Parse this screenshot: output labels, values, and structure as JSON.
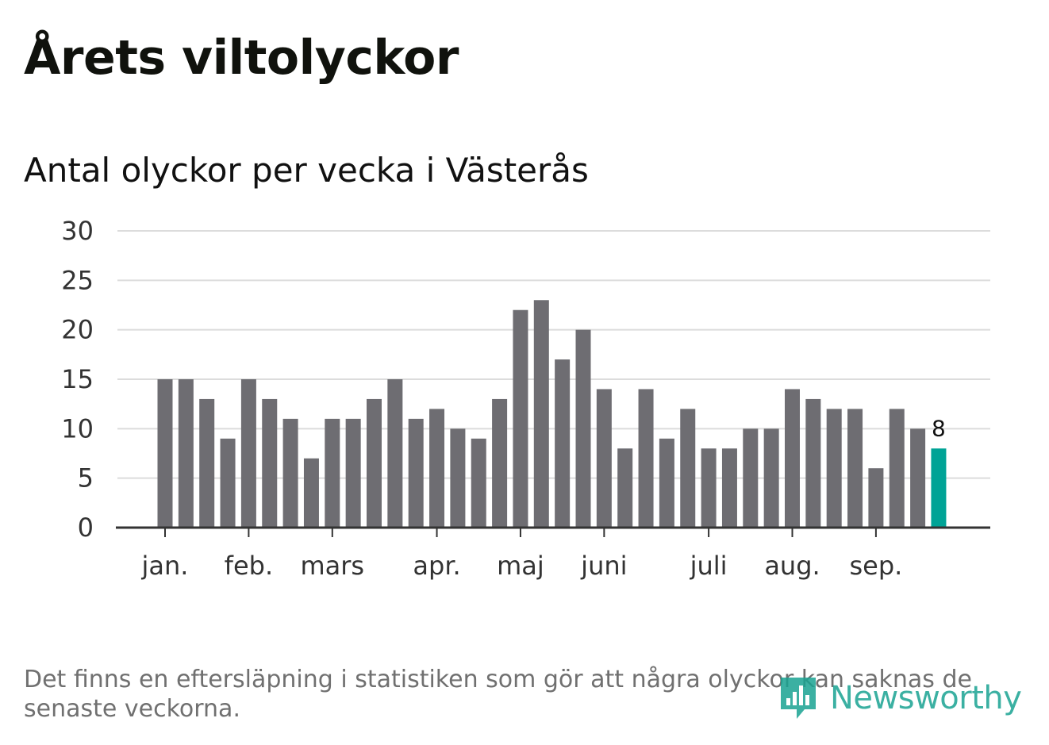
{
  "title": "Årets viltolyckor",
  "subtitle": "Antal olyckor per vecka i Västerås",
  "footnote": "Det finns en eftersläpning i statistiken som gör att några olyckor kan saknas de senaste veckorna.",
  "brand": {
    "name": "Newsworthy",
    "icon": "bar-chart-speech-bubble-icon"
  },
  "colors": {
    "bar": "#6e6d72",
    "highlight": "#00a396",
    "grid": "#dcdcdc",
    "axis": "#333333",
    "brand": "#1aa392"
  },
  "chart_data": {
    "type": "bar",
    "title": "Antal olyckor per vecka i Västerås",
    "xlabel": "",
    "ylabel": "",
    "ylim": [
      0,
      30
    ],
    "yticks": [
      0,
      5,
      10,
      15,
      20,
      25,
      30
    ],
    "grid": true,
    "values": [
      15,
      15,
      13,
      9,
      15,
      13,
      11,
      7,
      11,
      11,
      13,
      15,
      11,
      12,
      10,
      9,
      13,
      22,
      23,
      17,
      20,
      14,
      8,
      14,
      9,
      12,
      8,
      8,
      10,
      10,
      14,
      13,
      12,
      12,
      6,
      12,
      10,
      8
    ],
    "highlight_last": true,
    "last_value_label": "8",
    "month_labels": [
      {
        "label": "jan.",
        "week_index": 0
      },
      {
        "label": "feb.",
        "week_index": 4
      },
      {
        "label": "mars",
        "week_index": 8
      },
      {
        "label": "apr.",
        "week_index": 13
      },
      {
        "label": "maj",
        "week_index": 17
      },
      {
        "label": "juni",
        "week_index": 21
      },
      {
        "label": "juli",
        "week_index": 26
      },
      {
        "label": "aug.",
        "week_index": 30
      },
      {
        "label": "sep.",
        "week_index": 34
      }
    ]
  }
}
